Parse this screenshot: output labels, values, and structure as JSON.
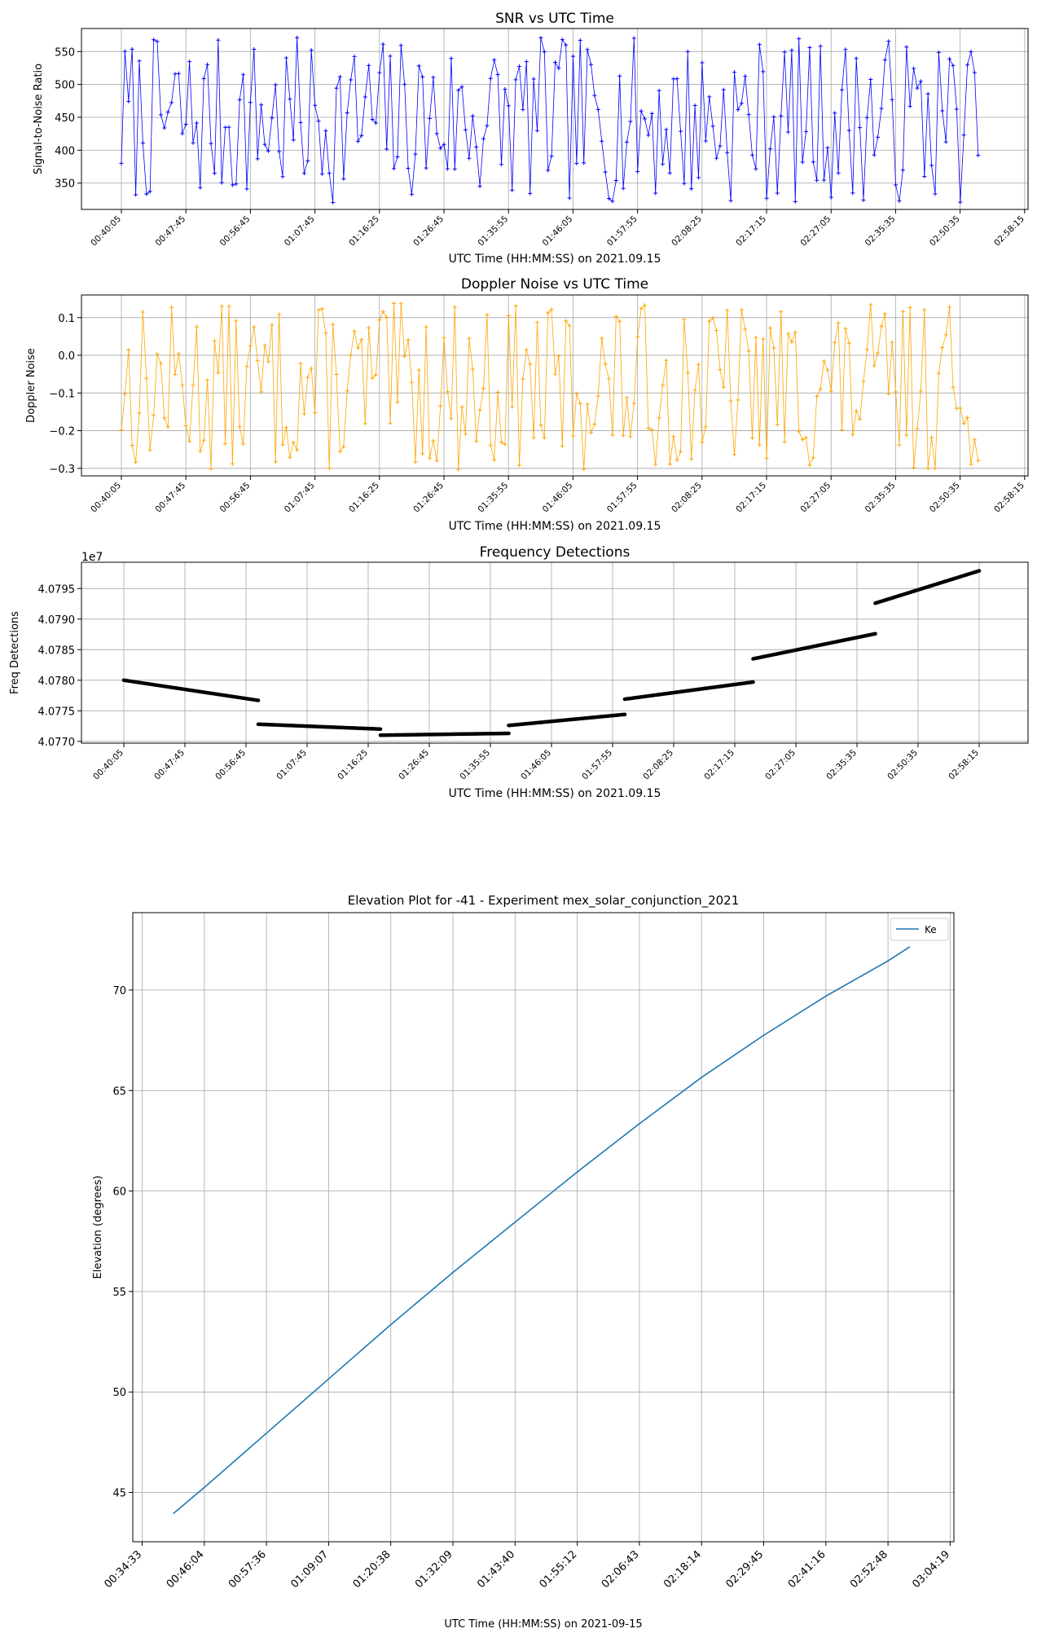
{
  "chart_data": [
    {
      "type": "line",
      "title": "SNR vs UTC Time",
      "xlabel": "UTC Time (HH:MM:SS) on 2021.09.15",
      "ylabel": "Signal-to-Noise Ratio",
      "xticks": [
        "00:40:05",
        "00:47:45",
        "00:56:45",
        "01:07:45",
        "01:16:25",
        "01:26:45",
        "01:35:55",
        "01:46:05",
        "01:57:55",
        "02:08:25",
        "02:17:15",
        "02:27:05",
        "02:35:35",
        "02:50:35",
        "02:58:15"
      ],
      "yticks": [
        350,
        400,
        450,
        500,
        550
      ],
      "ylim": [
        310,
        585
      ],
      "xrange_idx": [
        0,
        13.28
      ],
      "color": "#0000ff",
      "marker": "+",
      "grid": true,
      "n_points": 240,
      "band": [
        320,
        572
      ],
      "seed": 7
    },
    {
      "type": "line",
      "title": "Doppler Noise vs UTC Time",
      "xlabel": "UTC Time (HH:MM:SS) on 2021.09.15",
      "ylabel": "Doppler Noise",
      "xticks": [
        "00:40:05",
        "00:47:45",
        "00:56:45",
        "01:07:45",
        "01:16:25",
        "01:26:45",
        "01:35:55",
        "01:46:05",
        "01:57:55",
        "02:08:25",
        "02:17:15",
        "02:27:05",
        "02:35:35",
        "02:50:35",
        "02:58:15"
      ],
      "yticks": [
        0.1,
        0.0,
        -0.1,
        -0.2,
        -0.3
      ],
      "ytick_labels": [
        "0.1",
        "0.0",
        "−0.1",
        "−0.2",
        "−0.3"
      ],
      "ylim": [
        -0.32,
        0.16
      ],
      "xrange_idx": [
        0,
        13.28
      ],
      "color": "#ffa500",
      "marker": "+",
      "grid": true,
      "n_points": 240,
      "band": [
        -0.305,
        0.138
      ],
      "seed": 13
    },
    {
      "type": "scatter",
      "title": "Frequency Detections",
      "xlabel": "UTC Time (HH:MM:SS) on 2021.09.15",
      "ylabel": "Freq Detections",
      "offset_text": "1e7",
      "xticks": [
        "00:40:05",
        "00:47:45",
        "00:56:45",
        "01:07:45",
        "01:16:25",
        "01:26:45",
        "01:35:55",
        "01:46:05",
        "01:57:55",
        "02:08:25",
        "02:17:15",
        "02:27:05",
        "02:35:35",
        "02:50:35",
        "02:58:15"
      ],
      "yticks": [
        40770000,
        40775000,
        40780000,
        40785000,
        40790000,
        40795000
      ],
      "ytick_labels": [
        "4.0770",
        "4.0775",
        "4.0780",
        "4.0785",
        "4.0790",
        "4.0795"
      ],
      "ylim": [
        40769700,
        40799300
      ],
      "color": "#000000",
      "grid": true,
      "segments": [
        {
          "x0": 0.0,
          "x1": 2.2,
          "y0": 40780000,
          "y1": 40776700
        },
        {
          "x0": 2.2,
          "x1": 4.2,
          "y0": 40772800,
          "y1": 40772000
        },
        {
          "x0": 4.2,
          "x1": 6.3,
          "y0": 40771000,
          "y1": 40771300
        },
        {
          "x0": 6.3,
          "x1": 8.2,
          "y0": 40772600,
          "y1": 40774400
        },
        {
          "x0": 8.2,
          "x1": 10.3,
          "y0": 40776900,
          "y1": 40779700
        },
        {
          "x0": 10.3,
          "x1": 12.3,
          "y0": 40783500,
          "y1": 40787600
        },
        {
          "x0": 12.3,
          "x1": 14.0,
          "y0": 40792600,
          "y1": 40797900
        }
      ]
    },
    {
      "type": "line",
      "title": "Elevation Plot for -41 - Experiment mex_solar_conjunction_2021",
      "xlabel": "UTC Time (HH:MM:SS) on 2021-09-15",
      "ylabel": "Elevation (degrees)",
      "xticks": [
        "00:34:33",
        "00:46:04",
        "00:57:36",
        "01:09:07",
        "01:20:38",
        "01:32:09",
        "01:43:40",
        "01:55:12",
        "02:06:43",
        "02:18:14",
        "02:29:45",
        "02:41:16",
        "02:52:48",
        "03:04:19"
      ],
      "yticks": [
        45,
        50,
        55,
        60,
        65,
        70
      ],
      "ylim": [
        42.55,
        73.85
      ],
      "x_min_idx": -0.2,
      "x_max_idx": 13.05,
      "series": [
        {
          "name": "Ke",
          "color": "#1f77b4",
          "x_idx": [
            0.5,
            1,
            2,
            3,
            4,
            5,
            6,
            7,
            8,
            9,
            10,
            11,
            12,
            12.35
          ],
          "values": [
            43.95,
            45.25,
            47.95,
            50.65,
            53.35,
            55.95,
            58.45,
            60.95,
            63.35,
            65.65,
            67.75,
            69.7,
            71.45,
            72.15
          ]
        }
      ],
      "legend": "top-right"
    }
  ]
}
